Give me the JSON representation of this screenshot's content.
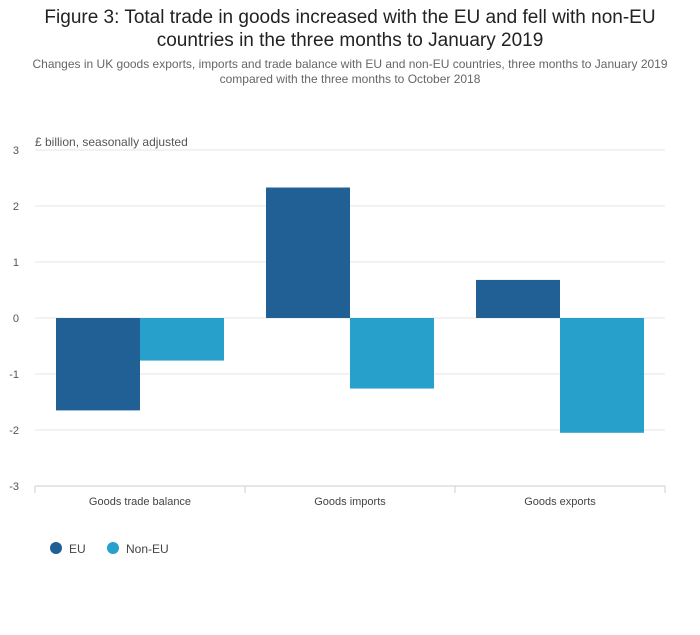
{
  "chart_data": {
    "type": "bar",
    "title": "Figure 3: Total trade in goods increased with the EU and fell with non-EU countries in the three months to January 2019",
    "subtitle": "Changes in UK goods exports, imports and trade balance with EU and non-EU countries, three months to January 2019 compared with the three months to October 2018",
    "ylabel": "£ billion, seasonally adjusted",
    "xlabel": "",
    "ylim": [
      -3,
      3
    ],
    "yticks": [
      3,
      2,
      1,
      0,
      -1,
      -2,
      -3
    ],
    "grid": true,
    "categories": [
      "Goods trade balance",
      "Goods imports",
      "Goods exports"
    ],
    "series": [
      {
        "name": "EU",
        "color": "#206095",
        "values": [
          -1.65,
          2.33,
          0.68
        ]
      },
      {
        "name": "Non-EU",
        "color": "#27a0cc",
        "values": [
          -0.76,
          -1.26,
          -2.05
        ]
      }
    ],
    "legend_position": "bottom-left"
  }
}
